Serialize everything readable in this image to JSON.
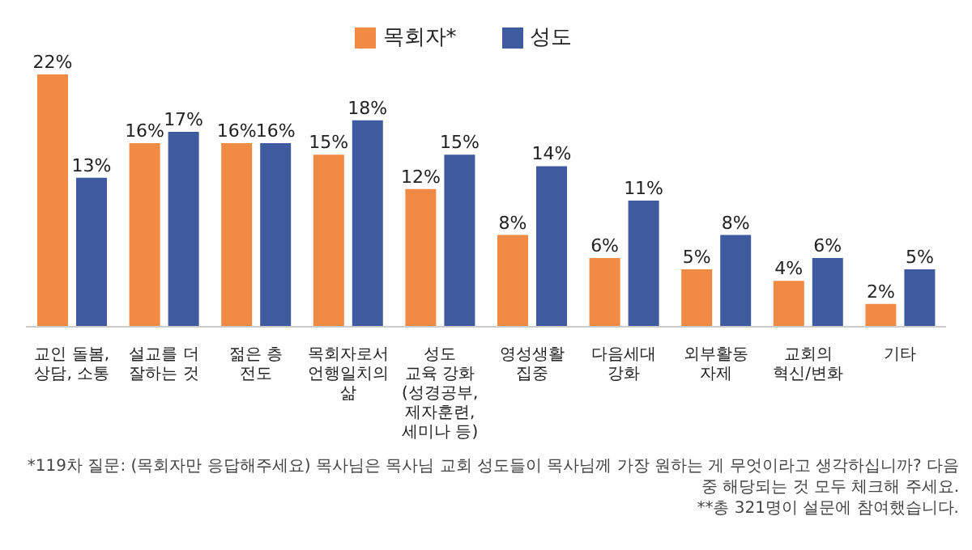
{
  "chart_data": {
    "type": "bar",
    "categories": [
      "교인 돌봄,\n상담, 소통",
      "설교를 더\n잘하는 것",
      "젊은 층\n전도",
      "목회자로서\n언행일치의\n삶",
      "성도\n교육 강화\n(성경공부,\n제자훈련,\n세미나 등)",
      "영성생활\n집중",
      "다음세대\n강화",
      "외부활동\n자제",
      "교회의\n혁신/변화",
      "기타"
    ],
    "series": [
      {
        "name": "목회자*",
        "color": "#f08a45",
        "values": [
          22,
          16,
          16,
          15,
          12,
          8,
          6,
          5,
          4,
          2
        ],
        "value_labels": [
          "22%",
          "16%",
          "16%",
          "15%",
          "12%",
          "8%",
          "6%",
          "5%",
          "4%",
          "2%"
        ]
      },
      {
        "name": "성도",
        "color": "#3f5b9f",
        "values": [
          13,
          17,
          16,
          18,
          15,
          14,
          11,
          8,
          6,
          5
        ],
        "value_labels": [
          "13%",
          "17%",
          "16%",
          "18%",
          "15%",
          "14%",
          "11%",
          "8%",
          "6%",
          "5%"
        ]
      }
    ],
    "ylim": [
      0,
      22
    ],
    "tick_labels": "x",
    "legend": "top",
    "annotations": [
      "*119차 질문: (목회자만 응답해주세요) 목사님은 목사님 교회 성도들이 목사님께 가장 원하는 게 무엇이라고 생각하십니까?  다음중 해당되는 것 모두 체크해 주세요.",
      "**총 321명이 설문에 참여했습니다."
    ]
  }
}
